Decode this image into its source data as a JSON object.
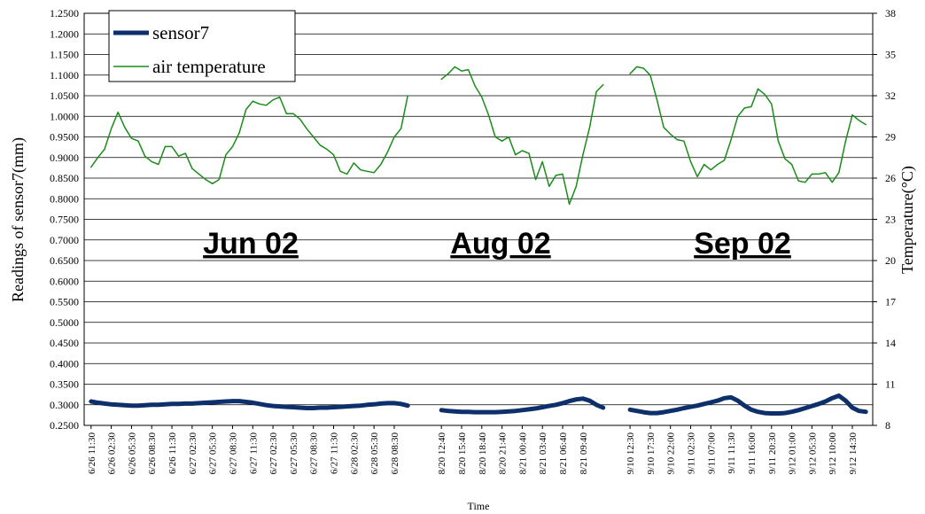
{
  "chart_data": {
    "type": "line",
    "x_label": "Time",
    "y_label": "Readings of sensor7(mm)",
    "y2_label": "Temperature(°C)",
    "annotations": [
      "Jun 02",
      "Aug 02",
      "Sep 02"
    ],
    "grid": true,
    "legend": "upper left",
    "categories": [
      "6/26 11:30",
      null,
      null,
      "6/26 02:30",
      null,
      null,
      "6/26 05:30",
      null,
      null,
      "6/26 08:30",
      null,
      null,
      "6/26 11:30",
      null,
      null,
      "6/27 02:30",
      null,
      null,
      "6/27 05:30",
      null,
      null,
      "6/27 08:30",
      null,
      null,
      "6/27 11:30",
      null,
      null,
      "6/27 02:30",
      null,
      null,
      "6/27 05:30",
      null,
      null,
      "6/27 08:30",
      null,
      null,
      "6/27 11:30",
      null,
      null,
      "6/28 02:30",
      null,
      null,
      "6/28 05:30",
      null,
      null,
      "6/28 08:30",
      null,
      null,
      null,
      null,
      null,
      null,
      "8/20 12:40",
      null,
      null,
      "8/20 15:40",
      null,
      null,
      "8/20 18:40",
      null,
      null,
      "8/20 21:40",
      null,
      null,
      "8/21 00:40",
      null,
      null,
      "8/21 03:40",
      null,
      null,
      "8/21 06:40",
      null,
      null,
      "8/21 09:40",
      null,
      null,
      null,
      null,
      null,
      null,
      "9/10 12:30",
      null,
      null,
      "9/10 17:30",
      null,
      null,
      "9/10 22:00",
      null,
      null,
      "9/11 02:30",
      null,
      null,
      "9/11 07:00",
      null,
      null,
      "9/11 11:30",
      null,
      null,
      "9/11 16:00",
      null,
      null,
      "9/11 20:30",
      null,
      null,
      "9/12 01:00",
      null,
      null,
      "9/12 05:30",
      null,
      null,
      "9/12 10:00",
      null,
      null,
      "9/12 14:30",
      null,
      null
    ],
    "series": [
      {
        "name": "sensor7",
        "color": "#0d2f6b",
        "axis": "y",
        "values": [
          0.308,
          0.305,
          0.303,
          0.301,
          0.3,
          0.299,
          0.298,
          0.298,
          0.299,
          0.3,
          0.3,
          0.301,
          0.302,
          0.302,
          0.303,
          0.303,
          0.304,
          0.305,
          0.306,
          0.307,
          0.308,
          0.309,
          0.309,
          0.307,
          0.305,
          0.302,
          0.299,
          0.297,
          0.296,
          0.295,
          0.294,
          0.293,
          0.292,
          0.292,
          0.293,
          0.293,
          0.294,
          0.295,
          0.296,
          0.297,
          0.298,
          0.3,
          0.301,
          0.303,
          0.304,
          0.304,
          0.302,
          0.298,
          null,
          null,
          null,
          null,
          0.287,
          0.285,
          0.284,
          0.283,
          0.283,
          0.282,
          0.282,
          0.282,
          0.282,
          0.283,
          0.284,
          0.285,
          0.287,
          0.289,
          0.291,
          0.294,
          0.297,
          0.3,
          0.304,
          0.309,
          0.313,
          0.315,
          0.31,
          0.3,
          0.293,
          null,
          null,
          null,
          0.288,
          0.285,
          0.282,
          0.28,
          0.28,
          0.282,
          0.285,
          0.288,
          0.292,
          0.295,
          0.298,
          0.302,
          0.306,
          0.31,
          0.316,
          0.318,
          0.31,
          0.298,
          0.288,
          0.283,
          0.28,
          0.279,
          0.279,
          0.28,
          0.283,
          0.287,
          0.292,
          0.297,
          0.302,
          0.308,
          0.316,
          0.322,
          0.31,
          0.293,
          0.285,
          0.283
        ]
      },
      {
        "name": "air temperature",
        "color": "#1a8c1a",
        "axis": "y2",
        "values": [
          26.8,
          27.5,
          28.1,
          29.6,
          30.8,
          29.7,
          28.9,
          28.7,
          27.6,
          27.2,
          27.0,
          28.3,
          28.3,
          27.6,
          27.8,
          26.7,
          26.3,
          25.9,
          25.6,
          25.9,
          27.7,
          28.3,
          29.3,
          31.0,
          31.6,
          31.4,
          31.3,
          31.7,
          31.9,
          30.7,
          30.7,
          30.3,
          29.6,
          29.0,
          28.4,
          28.1,
          27.7,
          26.5,
          26.3,
          27.1,
          26.6,
          26.5,
          26.4,
          27.0,
          27.9,
          29.0,
          29.6,
          32.0,
          null,
          null,
          null,
          null,
          33.2,
          33.6,
          34.1,
          33.8,
          33.9,
          32.7,
          31.9,
          30.6,
          29.0,
          28.7,
          29.0,
          27.7,
          28.0,
          27.8,
          25.9,
          27.2,
          25.4,
          26.2,
          26.3,
          24.1,
          25.4,
          27.7,
          29.7,
          32.3,
          32.8,
          null,
          null,
          null,
          33.6,
          34.1,
          34.0,
          33.5,
          31.7,
          29.7,
          29.2,
          28.8,
          28.7,
          27.2,
          26.1,
          27.0,
          26.6,
          27.0,
          27.3,
          28.8,
          30.5,
          31.1,
          31.2,
          32.5,
          32.1,
          31.4,
          28.7,
          27.4,
          27.0,
          25.8,
          25.7,
          26.3,
          26.3,
          26.4,
          25.7,
          26.4,
          28.7,
          30.6,
          30.2,
          29.9
        ]
      }
    ],
    "ylim": [
      0.25,
      1.25
    ],
    "yticks": [
      {
        "value": 0.25,
        "label": "0.2500"
      },
      {
        "value": 0.3,
        "label": "0.3000"
      },
      {
        "value": 0.35,
        "label": "0.3500"
      },
      {
        "value": 0.4,
        "label": "0.4000"
      },
      {
        "value": 0.45,
        "label": "0.4500"
      },
      {
        "value": 0.5,
        "label": "0.5000"
      },
      {
        "value": 0.55,
        "label": "0.5500"
      },
      {
        "value": 0.6,
        "label": "0.6000"
      },
      {
        "value": 0.65,
        "label": "0.6500"
      },
      {
        "value": 0.7,
        "label": "0.7000"
      },
      {
        "value": 0.75,
        "label": "0.7500"
      },
      {
        "value": 0.8,
        "label": "0.8000"
      },
      {
        "value": 0.85,
        "label": "0.8500"
      },
      {
        "value": 0.9,
        "label": "0.9000"
      },
      {
        "value": 0.95,
        "label": "0.9500"
      },
      {
        "value": 1.0,
        "label": "1.0000"
      },
      {
        "value": 1.05,
        "label": "1.0500"
      },
      {
        "value": 1.1,
        "label": "1.1000"
      },
      {
        "value": 1.15,
        "label": "1.1500"
      },
      {
        "value": 1.2,
        "label": "1.2000"
      },
      {
        "value": 1.25,
        "label": "1.2500"
      }
    ],
    "y2lim": [
      8,
      38
    ],
    "y2ticks": [
      8,
      11,
      14,
      17,
      20,
      23,
      26,
      29,
      32,
      35,
      38
    ]
  }
}
